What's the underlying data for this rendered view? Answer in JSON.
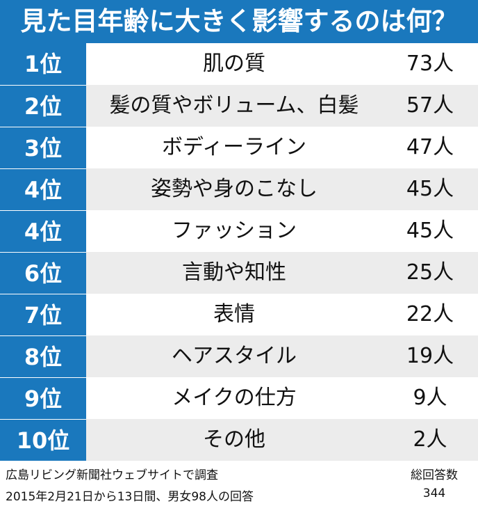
{
  "chart_data": {
    "type": "table",
    "title": "見た目年齢に大きく影響するのは何？",
    "rows": [
      {
        "rank": "1位",
        "item": "肌の質",
        "count": "73人",
        "value": 73
      },
      {
        "rank": "2位",
        "item": "髪の質やボリューム、白髪",
        "count": "57人",
        "value": 57
      },
      {
        "rank": "3位",
        "item": "ボディーライン",
        "count": "47人",
        "value": 47
      },
      {
        "rank": "4位",
        "item": "姿勢や身のこなし",
        "count": "45人",
        "value": 45
      },
      {
        "rank": "4位",
        "item": "ファッション",
        "count": "45人",
        "value": 45
      },
      {
        "rank": "6位",
        "item": "言動や知性",
        "count": "25人",
        "value": 25
      },
      {
        "rank": "7位",
        "item": "表情",
        "count": "22人",
        "value": 22
      },
      {
        "rank": "8位",
        "item": "ヘアスタイル",
        "count": "19人",
        "value": 19
      },
      {
        "rank": "9位",
        "item": "メイクの仕方",
        "count": "9人",
        "value": 9
      },
      {
        "rank": "10位",
        "item": "その他",
        "count": "2人",
        "value": 2
      }
    ]
  },
  "footer": {
    "source_line1": "広島リビング新聞社ウェブサイトで調査",
    "source_line2": "2015年2月21日から13日間、男女98人の回答",
    "total_label": "総回答数",
    "total_value": "344"
  },
  "colors": {
    "header_blue": "#1a78bd",
    "row_alt": "#ececec"
  }
}
